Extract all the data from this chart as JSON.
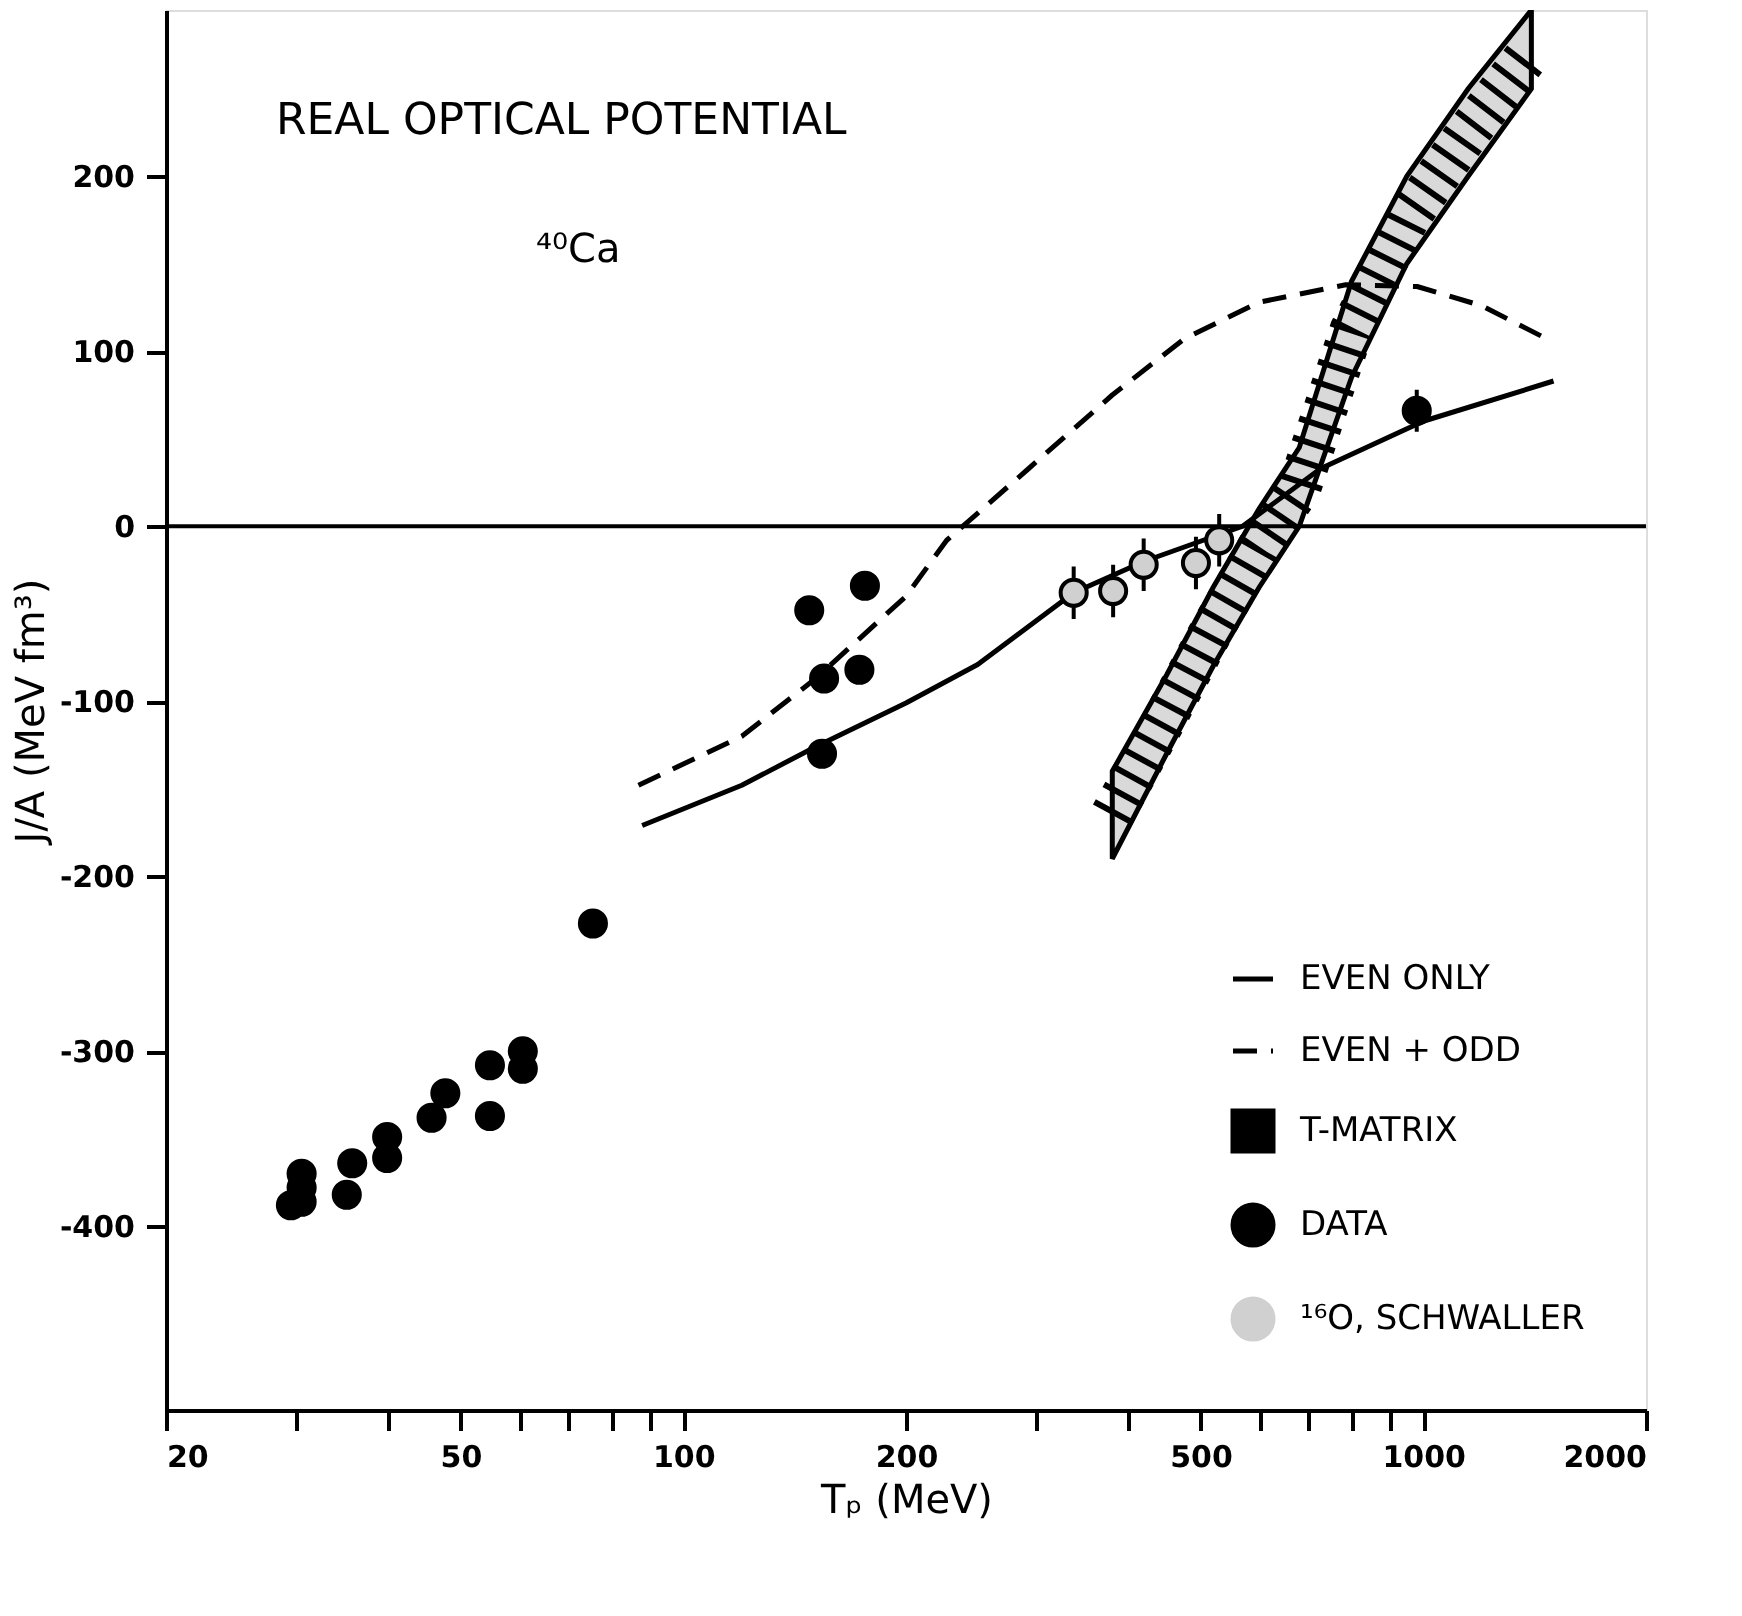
{
  "chart_data": {
    "type": "line",
    "title": "REAL OPTICAL POTENTIAL",
    "xlabel": "Tₚ (MeV)",
    "ylabel": "J/A (MeV fm³)",
    "annotations": [
      "⁴⁰Ca"
    ],
    "log": "x",
    "grid": false,
    "legend": "bottom right",
    "xlim": [
      20,
      2000
    ],
    "ylim": [
      -505,
      295
    ],
    "xticks": [
      20,
      {
        "value": 30,
        "label": null
      },
      {
        "value": 40,
        "label": null
      },
      50,
      {
        "value": 60,
        "label": null
      },
      {
        "value": 70,
        "label": null
      },
      {
        "value": 80,
        "label": null
      },
      {
        "value": 90,
        "label": null
      },
      100,
      200,
      {
        "value": 300,
        "label": null
      },
      {
        "value": 400,
        "label": null
      },
      500,
      {
        "value": 600,
        "label": null
      },
      {
        "value": 700,
        "label": null
      },
      {
        "value": 800,
        "label": null
      },
      {
        "value": 900,
        "label": null
      },
      1000,
      2000
    ],
    "yticks": [
      -400,
      -300,
      -200,
      -100,
      0,
      100,
      200
    ],
    "ref_lines": [
      {
        "axis": "y",
        "value": 0,
        "color": "#000000"
      }
    ],
    "series": [
      {
        "name": "EVEN ONLY",
        "line_style": "solid",
        "color": "#000000",
        "x": [
          88,
          120,
          151,
          200,
          250,
          337,
          420,
          570,
          727,
          1000,
          1500
        ],
        "values": [
          -171,
          -148,
          -126,
          -101,
          -79,
          -38,
          -20,
          0,
          33,
          60,
          83
        ]
      },
      {
        "name": "EVEN + ODD",
        "line_style": "dashed",
        "color": "#000000",
        "x": [
          87,
          120,
          151,
          200,
          227,
          293,
          380,
          475,
          600,
          786,
          981,
          1200,
          1470
        ],
        "values": [
          -148,
          -120,
          -87,
          -40,
          -8,
          33,
          75,
          107,
          128,
          138,
          137,
          126,
          107
        ]
      },
      {
        "name": "T-MATRIX",
        "type": "line",
        "line_style": "dashed",
        "color": "#000000",
        "x": [
          380,
          450,
          520,
          600,
          680,
          800,
          950,
          1150,
          1400
        ],
        "values": [
          -165,
          -108,
          -58,
          -12,
          22,
          112,
          175,
          225,
          272
        ],
        "lower": [
          -190,
          -130,
          -80,
          -35,
          0,
          85,
          150,
          200,
          250
        ],
        "upper": [
          -140,
          -85,
          -35,
          10,
          45,
          140,
          200,
          250,
          295
        ]
      },
      {
        "name": "DATA",
        "type": "scatter",
        "marker": "circle",
        "color": "#000000",
        "x": [
          29.5,
          30.5,
          30.5,
          30.5,
          35.1,
          35.7,
          39.8,
          39.8,
          45.7,
          47.7,
          54.8,
          54.8,
          60.7,
          60.7,
          75.5,
          148,
          176,
          155,
          173,
          154,
          980
        ],
        "values": [
          -388,
          -386,
          -378,
          -370,
          -382,
          -364,
          -361,
          -349,
          -338,
          -324,
          -337,
          -308,
          -300,
          -310,
          -227,
          -48,
          -34,
          -87,
          -82,
          -130,
          66
        ],
        "errors": [
          null,
          null,
          null,
          null,
          null,
          null,
          null,
          null,
          null,
          null,
          null,
          null,
          null,
          null,
          null,
          null,
          null,
          null,
          null,
          null,
          12
        ]
      },
      {
        "name": "¹⁶O, SCHWALLER",
        "type": "scatter",
        "marker": "circle",
        "color": "#d0d0d0",
        "x": [
          337,
          381,
          419,
          493,
          530
        ],
        "values": [
          -38,
          -37,
          -22,
          -21,
          -8
        ],
        "errors": [
          15,
          15,
          15,
          15,
          15
        ]
      }
    ]
  }
}
